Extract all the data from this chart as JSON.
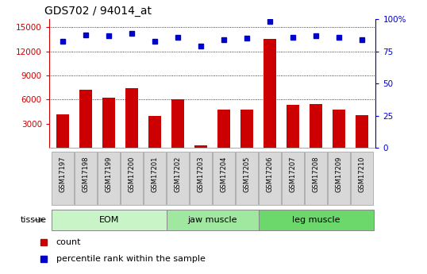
{
  "title": "GDS702 / 94014_at",
  "samples": [
    "GSM17197",
    "GSM17198",
    "GSM17199",
    "GSM17200",
    "GSM17201",
    "GSM17202",
    "GSM17203",
    "GSM17204",
    "GSM17205",
    "GSM17206",
    "GSM17207",
    "GSM17208",
    "GSM17209",
    "GSM17210"
  ],
  "counts": [
    4200,
    7200,
    6200,
    7400,
    4000,
    6000,
    300,
    4800,
    4750,
    13500,
    5400,
    5500,
    4800,
    4100
  ],
  "percentile_ranks": [
    83,
    88,
    87,
    89,
    83,
    86,
    79,
    84,
    85,
    98,
    86,
    87,
    86,
    84
  ],
  "groups": [
    {
      "label": "EOM",
      "start": 0,
      "end": 5,
      "color": "#c8f4c8"
    },
    {
      "label": "jaw muscle",
      "start": 5,
      "end": 9,
      "color": "#a0e8a0"
    },
    {
      "label": "leg muscle",
      "start": 9,
      "end": 14,
      "color": "#6cd86c"
    }
  ],
  "bar_color": "#cc0000",
  "dot_color": "#0000cc",
  "ylim_left": [
    0,
    16000
  ],
  "ylim_right": [
    0,
    100
  ],
  "yticks_left": [
    3000,
    6000,
    9000,
    12000,
    15000
  ],
  "yticks_right": [
    0,
    25,
    50,
    75,
    100
  ],
  "ytick_labels_right": [
    "0",
    "25",
    "50",
    "75",
    "100%"
  ],
  "grid_values": [
    6000,
    9000,
    12000,
    15000
  ],
  "left_axis_color": "#cc0000",
  "right_axis_color": "#0000cc",
  "legend_count_label": "count",
  "legend_pct_label": "percentile rank within the sample",
  "tissue_label": "tissue"
}
